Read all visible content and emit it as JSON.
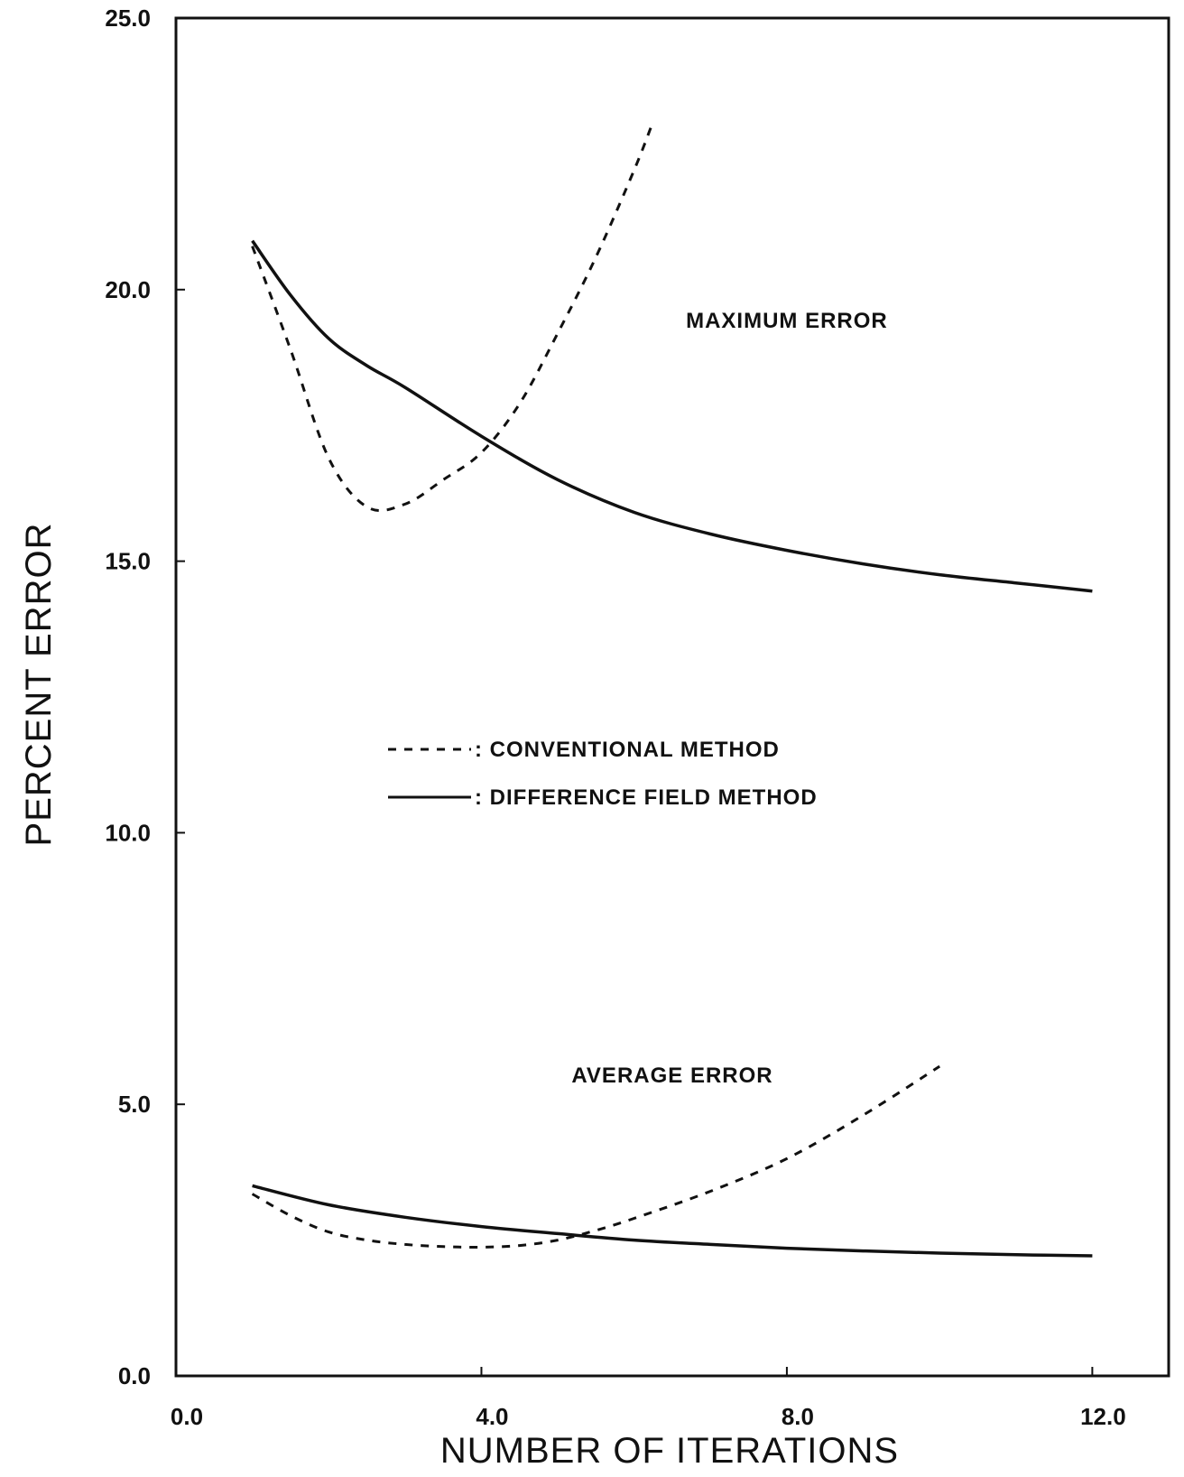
{
  "chart_data": {
    "type": "line",
    "title": "",
    "xlabel": "NUMBER OF ITERATIONS",
    "ylabel": "PERCENT ERROR",
    "xlim": [
      0,
      13
    ],
    "ylim": [
      0,
      25
    ],
    "grid": false,
    "x_ticks": [
      {
        "value": 0,
        "label": "0.0"
      },
      {
        "value": 4,
        "label": "4.0"
      },
      {
        "value": 8,
        "label": "8.0"
      },
      {
        "value": 12,
        "label": "12.0"
      }
    ],
    "y_ticks": [
      {
        "value": 0,
        "label": "0.0"
      },
      {
        "value": 5,
        "label": "5.0"
      },
      {
        "value": 10,
        "label": "10.0"
      },
      {
        "value": 15,
        "label": "15.0"
      },
      {
        "value": 20,
        "label": "20.0"
      },
      {
        "value": 25,
        "label": "25.0"
      }
    ],
    "legend": {
      "placement": "center",
      "entries": [
        {
          "label": ": CONVENTIONAL METHOD",
          "style": "dashed"
        },
        {
          "label": ": DIFFERENCE FIELD METHOD",
          "style": "solid"
        }
      ]
    },
    "annotations": [
      {
        "text": "MAXIMUM ERROR",
        "x": 8.0,
        "y": 19.3
      },
      {
        "text": "AVERAGE ERROR",
        "x": 6.5,
        "y": 5.4
      }
    ],
    "series": [
      {
        "group": "MAXIMUM ERROR",
        "method": ": CONVENTIONAL METHOD",
        "style": "dashed",
        "x": [
          1.0,
          1.5,
          2.0,
          2.5,
          3.0,
          3.5,
          4.0,
          4.5,
          5.0,
          5.5,
          6.0,
          6.25
        ],
        "y": [
          20.8,
          18.9,
          16.9,
          16.0,
          16.05,
          16.5,
          17.0,
          17.9,
          19.2,
          20.6,
          22.2,
          23.1
        ]
      },
      {
        "group": "MAXIMUM ERROR",
        "method": ": DIFFERENCE FIELD METHOD",
        "style": "solid",
        "x": [
          1.0,
          1.5,
          2.0,
          2.5,
          3.0,
          4.0,
          5.0,
          6.0,
          7.0,
          8.0,
          9.0,
          10.0,
          11.0,
          12.0
        ],
        "y": [
          20.9,
          19.9,
          19.1,
          18.6,
          18.2,
          17.3,
          16.5,
          15.9,
          15.5,
          15.2,
          14.95,
          14.75,
          14.6,
          14.45
        ]
      },
      {
        "group": "AVERAGE ERROR",
        "method": ": CONVENTIONAL METHOD",
        "style": "dashed",
        "x": [
          1.0,
          1.5,
          2.0,
          2.5,
          3.0,
          3.5,
          4.0,
          4.5,
          5.0,
          5.5,
          6.0,
          7.0,
          8.0,
          9.0,
          10.0
        ],
        "y": [
          3.35,
          2.95,
          2.65,
          2.5,
          2.42,
          2.38,
          2.37,
          2.4,
          2.5,
          2.68,
          2.9,
          3.4,
          4.0,
          4.8,
          5.7
        ]
      },
      {
        "group": "AVERAGE ERROR",
        "method": ": DIFFERENCE FIELD METHOD",
        "style": "solid",
        "x": [
          1.0,
          2.0,
          3.0,
          4.0,
          5.0,
          6.0,
          7.0,
          8.0,
          9.0,
          10.0,
          11.0,
          12.0
        ],
        "y": [
          3.5,
          3.15,
          2.92,
          2.75,
          2.62,
          2.5,
          2.42,
          2.35,
          2.3,
          2.26,
          2.23,
          2.21
        ]
      }
    ]
  }
}
